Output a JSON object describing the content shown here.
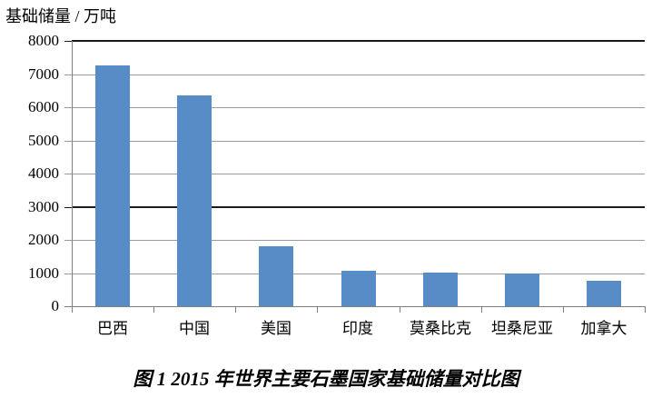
{
  "chart_data": {
    "type": "bar",
    "title": "图 1 2015 年世界主要石墨国家基础储量对比图",
    "ylabel": "基础储量 / 万吨",
    "xlabel": "",
    "categories": [
      "巴西",
      "中国",
      "美国",
      "印度",
      "莫桑比克",
      "坦桑尼亚",
      "加拿大"
    ],
    "values": [
      7250,
      6350,
      1800,
      1080,
      1020,
      1000,
      780
    ],
    "ylim": [
      0,
      8000
    ],
    "yticks": [
      0,
      1000,
      2000,
      3000,
      4000,
      5000,
      6000,
      7000,
      8000
    ],
    "grid": true,
    "legend": false,
    "emphasized_gridlines": [
      3000,
      8000
    ],
    "colors": {
      "bar": "#588cc6",
      "gridline": "#9a9a9a",
      "emphasized_gridline": "#1a1a1a",
      "axis": "#808080",
      "text": "#000000",
      "background": "#ffffff"
    }
  }
}
